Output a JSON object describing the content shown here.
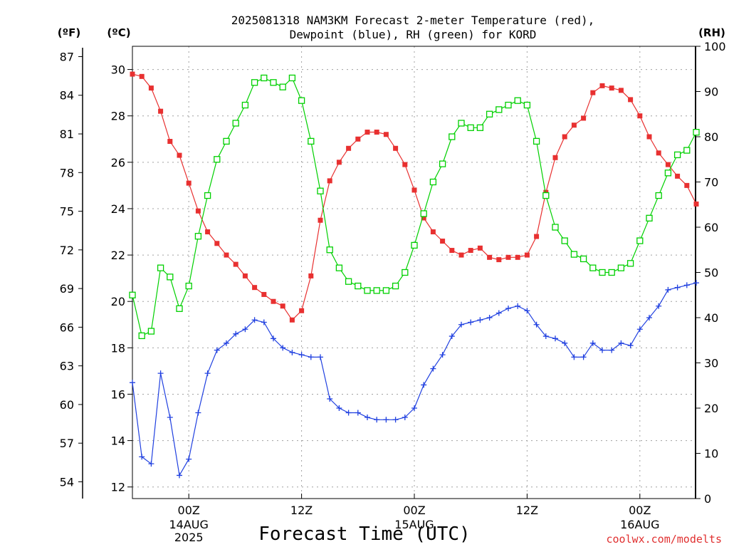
{
  "title_lines": [
    "2025081318 NAM3KM Forecast 2-meter Temperature (red),",
    "Dewpoint (blue), RH (green) for KORD"
  ],
  "units": {
    "fahrenheit": "(ºF)",
    "celsius": "(ºC)",
    "rh": "(RH)"
  },
  "xlabel": "Forecast Time (UTC)",
  "credit": "coolwx.com/modelts",
  "colors": {
    "temperature": "#e83030",
    "dewpoint": "#2040e0",
    "rh": "#00d000",
    "grid": "#a0a0a0"
  },
  "chart_data": {
    "type": "line",
    "x": [
      "2025-08-13 18Z",
      "19Z",
      "20Z",
      "21Z",
      "22Z",
      "23Z",
      "2025-08-14 00Z",
      "01Z",
      "02Z",
      "03Z",
      "04Z",
      "05Z",
      "06Z",
      "07Z",
      "08Z",
      "09Z",
      "10Z",
      "11Z",
      "12Z",
      "13Z",
      "14Z",
      "15Z",
      "16Z",
      "17Z",
      "18Z",
      "19Z",
      "20Z",
      "21Z",
      "22Z",
      "23Z",
      "2025-08-15 00Z",
      "01Z",
      "02Z",
      "03Z",
      "04Z",
      "05Z",
      "06Z",
      "07Z",
      "08Z",
      "09Z",
      "10Z",
      "11Z",
      "12Z",
      "13Z",
      "14Z",
      "15Z",
      "16Z",
      "17Z",
      "18Z",
      "19Z",
      "20Z",
      "21Z",
      "22Z",
      "23Z",
      "2025-08-16 00Z",
      "01Z",
      "02Z",
      "03Z",
      "04Z",
      "05Z",
      "06Z"
    ],
    "x_ticks": [
      {
        "label": "00Z",
        "sub": [
          "14AUG",
          "2025"
        ],
        "index": 6
      },
      {
        "label": "12Z",
        "sub": [],
        "index": 18
      },
      {
        "label": "00Z",
        "sub": [
          "15AUG"
        ],
        "index": 30
      },
      {
        "label": "12Z",
        "sub": [],
        "index": 42
      },
      {
        "label": "00Z",
        "sub": [
          "16AUG"
        ],
        "index": 54
      }
    ],
    "series": [
      {
        "name": "Temperature",
        "axis": "celsius",
        "values": [
          29.8,
          29.7,
          29.2,
          28.2,
          26.9,
          26.3,
          25.1,
          23.9,
          23.0,
          22.5,
          22.0,
          21.6,
          21.1,
          20.6,
          20.3,
          20.0,
          19.8,
          19.2,
          19.6,
          21.1,
          23.5,
          25.2,
          26.0,
          26.6,
          27.0,
          27.3,
          27.3,
          27.2,
          26.6,
          25.9,
          24.8,
          23.6,
          23.0,
          22.6,
          22.2,
          22.0,
          22.2,
          22.3,
          21.9,
          21.8,
          21.9,
          21.9,
          22.0,
          22.8,
          24.7,
          26.2,
          27.1,
          27.6,
          27.9,
          29.0,
          29.3,
          29.2,
          29.1,
          28.7,
          28.0,
          27.1,
          26.4,
          25.9,
          25.4,
          25.0,
          24.2
        ]
      },
      {
        "name": "Dewpoint",
        "axis": "celsius",
        "values": [
          16.5,
          13.3,
          13.0,
          16.9,
          15.0,
          12.5,
          13.2,
          15.2,
          16.9,
          17.9,
          18.2,
          18.6,
          18.8,
          19.2,
          19.1,
          18.4,
          18.0,
          17.8,
          17.7,
          17.6,
          17.6,
          15.8,
          15.4,
          15.2,
          15.2,
          15.0,
          14.9,
          14.9,
          14.9,
          15.0,
          15.4,
          16.4,
          17.1,
          17.7,
          18.5,
          19.0,
          19.1,
          19.2,
          19.3,
          19.5,
          19.7,
          19.8,
          19.6,
          19.0,
          18.5,
          18.4,
          18.2,
          17.6,
          17.6,
          18.2,
          17.9,
          17.9,
          18.2,
          18.1,
          18.8,
          19.3,
          19.8,
          20.5,
          20.6,
          20.7,
          20.8
        ]
      },
      {
        "name": "RH",
        "axis": "rh",
        "values": [
          45,
          36,
          37,
          51,
          49,
          42,
          47,
          58,
          67,
          75,
          79,
          83,
          87,
          92,
          93,
          92,
          91,
          93,
          88,
          79,
          68,
          55,
          51,
          48,
          47,
          46,
          46,
          46,
          47,
          50,
          56,
          63,
          70,
          74,
          80,
          83,
          82,
          82,
          85,
          86,
          87,
          88,
          87,
          79,
          67,
          60,
          57,
          54,
          53,
          51,
          50,
          50,
          51,
          52,
          57,
          62,
          67,
          72,
          76,
          77,
          81
        ]
      }
    ],
    "axes": {
      "celsius": {
        "ylim": [
          11.5,
          31.0
        ],
        "ticks": [
          12,
          14,
          16,
          18,
          20,
          22,
          24,
          26,
          28,
          30
        ]
      },
      "fahrenheit": {
        "ticks": [
          54,
          57,
          60,
          63,
          66,
          69,
          72,
          75,
          78,
          81,
          84,
          87
        ]
      },
      "rh": {
        "ylim": [
          0,
          100
        ],
        "ticks": [
          0,
          10,
          20,
          30,
          40,
          50,
          60,
          70,
          80,
          90,
          100
        ]
      }
    },
    "grid": true
  }
}
